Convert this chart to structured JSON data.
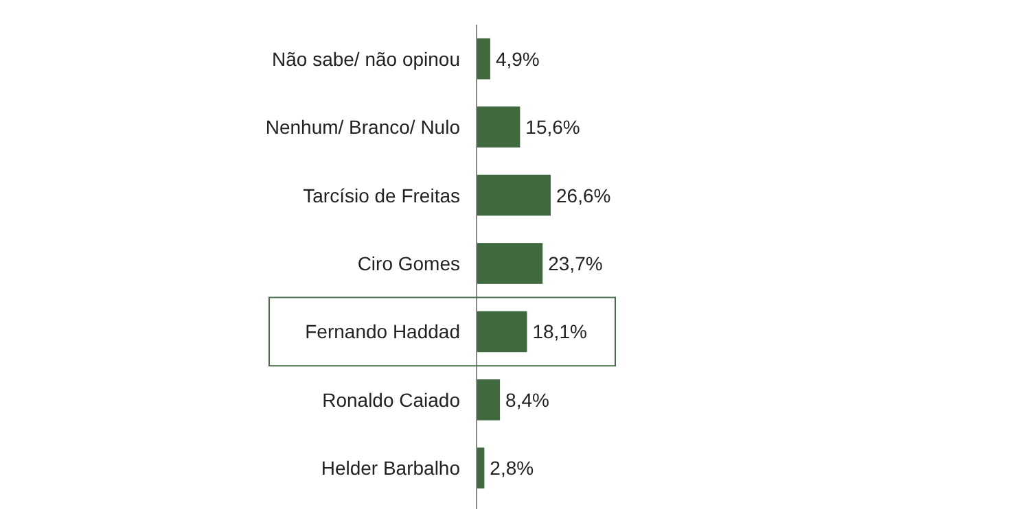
{
  "chart_data": {
    "type": "bar",
    "orientation": "horizontal",
    "categories": [
      "Não sabe/ não opinou",
      "Nenhum/ Branco/ Nulo",
      "Tarcísio de Freitas",
      "Ciro Gomes",
      "Fernando Haddad",
      "Ronaldo Caiado",
      "Helder Barbalho"
    ],
    "values": [
      4.9,
      15.6,
      26.6,
      23.7,
      18.1,
      8.4,
      2.8
    ],
    "value_labels": [
      "4,9%",
      "15,6%",
      "26,6%",
      "23,7%",
      "18,1%",
      "8,4%",
      "2,8%"
    ],
    "color": "#3e6a3e"
  }
}
